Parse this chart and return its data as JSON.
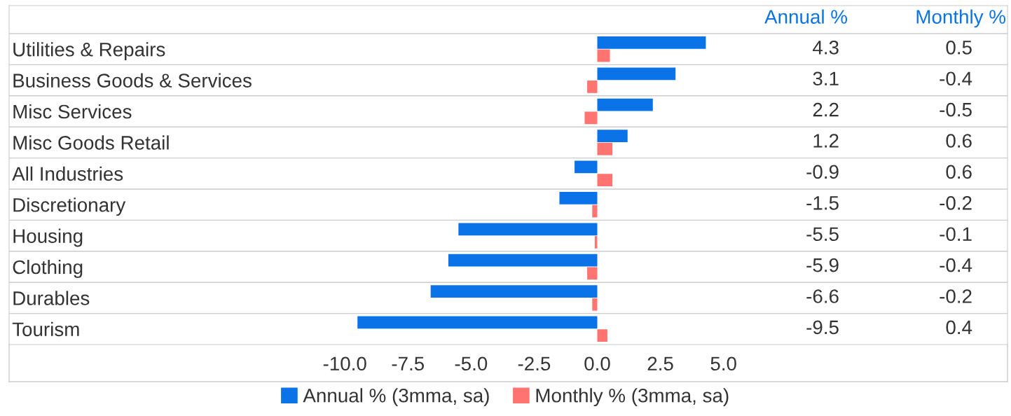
{
  "chart_data": {
    "type": "bar",
    "orientation": "horizontal",
    "categories": [
      "Utilities & Repairs",
      "Business Goods & Services",
      "Misc Services",
      "Misc Goods Retail",
      "All Industries",
      "Discretionary",
      "Housing",
      "Clothing",
      "Durables",
      "Tourism"
    ],
    "series": [
      {
        "name": "Annual % (3mma, sa)",
        "color": "#0a73e8",
        "values": [
          4.3,
          3.1,
          2.2,
          1.2,
          -0.9,
          -1.5,
          -5.5,
          -5.9,
          -6.6,
          -9.5
        ]
      },
      {
        "name": "Monthly % (3mma, sa)",
        "color": "#ff7370",
        "values": [
          0.5,
          -0.4,
          -0.5,
          0.6,
          0.6,
          -0.2,
          -0.1,
          -0.4,
          -0.2,
          0.4
        ]
      }
    ],
    "annotations": [
      "Annual %",
      "Monthly %"
    ],
    "data_labels": true,
    "xlim": [
      -23.3,
      16.25
    ],
    "xticks": [
      {
        "value": -10,
        "label": "-10.0"
      },
      {
        "value": -7.5,
        "label": "-7.5"
      },
      {
        "value": -5,
        "label": "-5.0"
      },
      {
        "value": -2.5,
        "label": "-2.5"
      },
      {
        "value": 0,
        "label": "0.0"
      },
      {
        "value": 2.5,
        "label": "2.5"
      },
      {
        "value": 5,
        "label": "5.0"
      }
    ],
    "grid": "y",
    "legend": "bottom"
  }
}
